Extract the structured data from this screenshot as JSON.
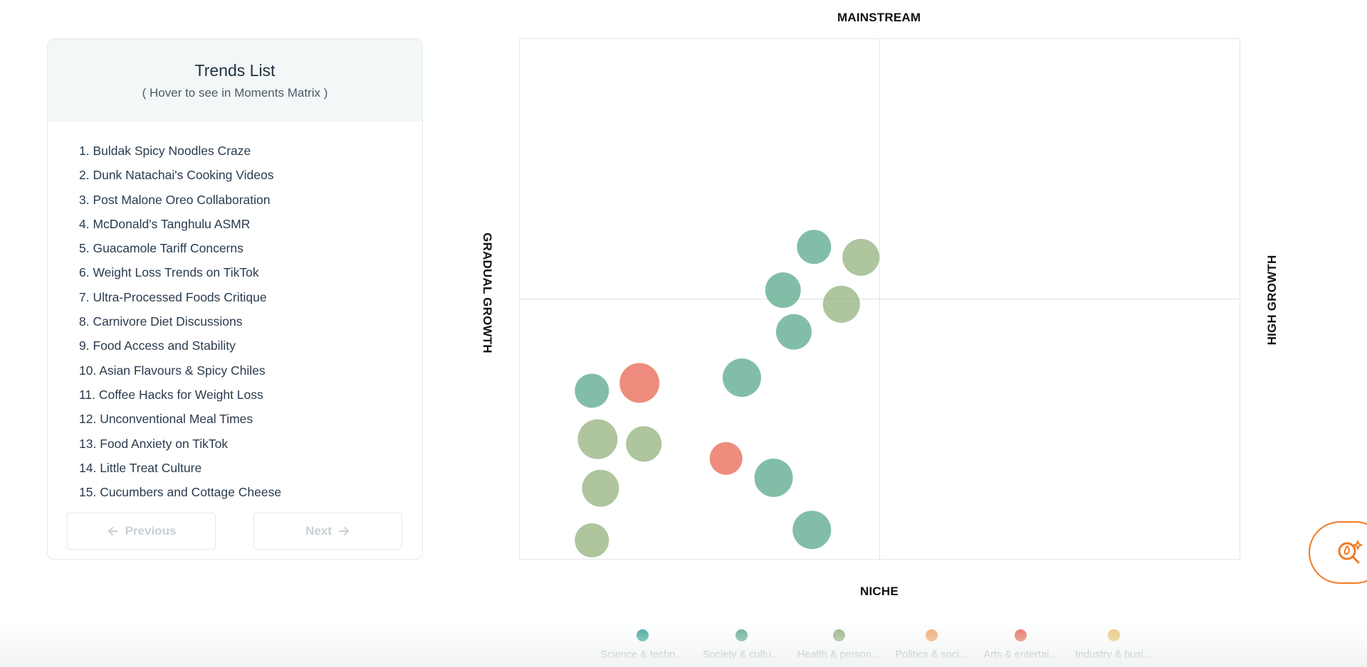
{
  "trends_panel": {
    "title": "Trends List",
    "subtitle": "( Hover to see in Moments Matrix )",
    "items": [
      "1. Buldak Spicy Noodles Craze",
      "2. Dunk Natachai's Cooking Videos",
      "3. Post Malone Oreo Collaboration",
      "4. McDonald's Tanghulu ASMR",
      "5. Guacamole Tariff Concerns",
      "6. Weight Loss Trends on TikTok",
      "7. Ultra-Processed Foods Critique",
      "8. Carnivore Diet Discussions",
      "9. Food Access and Stability",
      "10. Asian Flavours & Spicy Chiles",
      "11. Coffee Hacks for Weight Loss",
      "12. Unconventional Meal Times",
      "13. Food Anxiety on TikTok",
      "14. Little Treat Culture",
      "15. Cucumbers and Cottage Cheese"
    ],
    "previous_label": "Previous",
    "next_label": "Next"
  },
  "matrix": {
    "top_label": "MAINSTREAM",
    "bottom_label": "NICHE",
    "left_label": "GRADUAL GROWTH",
    "right_label": "HIGH GROWTH"
  },
  "chart_data": {
    "type": "scatter",
    "title": "",
    "xlim": [
      0,
      1
    ],
    "ylim": [
      0,
      1
    ],
    "grid": false,
    "quadrant_dividers": {
      "x": 0.5,
      "y": 0.5
    },
    "legend_position": "bottom",
    "categories": [
      {
        "name": "Science & techn...",
        "color": "#2a9d8f"
      },
      {
        "name": "Society & cultu...",
        "color": "#52a585"
      },
      {
        "name": "Health & person...",
        "color": "#8fae78"
      },
      {
        "name": "Politics & soci...",
        "color": "#f2a062"
      },
      {
        "name": "Arts & entertai...",
        "color": "#e8604c"
      },
      {
        "name": "Industry & busi...",
        "color": "#e9c46a"
      }
    ],
    "points": [
      {
        "x": 0.409,
        "y": 0.6,
        "size": 24,
        "category": "Society & cultu...",
        "color": "#52a585"
      },
      {
        "x": 0.474,
        "y": 0.58,
        "size": 26,
        "category": "Health & person...",
        "color": "#8fae78"
      },
      {
        "x": 0.366,
        "y": 0.517,
        "size": 25,
        "category": "Society & cultu...",
        "color": "#52a585"
      },
      {
        "x": 0.447,
        "y": 0.49,
        "size": 26,
        "category": "Health & person...",
        "color": "#8fae78"
      },
      {
        "x": 0.381,
        "y": 0.437,
        "size": 25,
        "category": "Society & cultu...",
        "color": "#52a585"
      },
      {
        "x": 0.309,
        "y": 0.349,
        "size": 27,
        "category": "Society & cultu...",
        "color": "#52a585"
      },
      {
        "x": 0.167,
        "y": 0.339,
        "size": 28,
        "category": "Arts & entertai...",
        "color": "#e8604c"
      },
      {
        "x": 0.101,
        "y": 0.324,
        "size": 24,
        "category": "Society & cultu...",
        "color": "#52a585"
      },
      {
        "x": 0.109,
        "y": 0.231,
        "size": 28,
        "category": "Health & person...",
        "color": "#8fae78"
      },
      {
        "x": 0.173,
        "y": 0.222,
        "size": 25,
        "category": "Health & person...",
        "color": "#8fae78"
      },
      {
        "x": 0.287,
        "y": 0.194,
        "size": 23,
        "category": "Arts & entertai...",
        "color": "#e8604c"
      },
      {
        "x": 0.353,
        "y": 0.157,
        "size": 27,
        "category": "Society & cultu...",
        "color": "#52a585"
      },
      {
        "x": 0.113,
        "y": 0.137,
        "size": 26,
        "category": "Health & person...",
        "color": "#8fae78"
      },
      {
        "x": 0.406,
        "y": 0.057,
        "size": 27,
        "category": "Society & cultu...",
        "color": "#52a585"
      },
      {
        "x": 0.101,
        "y": 0.037,
        "size": 24,
        "category": "Health & person...",
        "color": "#8fae78"
      }
    ]
  },
  "fab": {
    "icon": "trend-search-icon",
    "color": "#ef7b24"
  }
}
